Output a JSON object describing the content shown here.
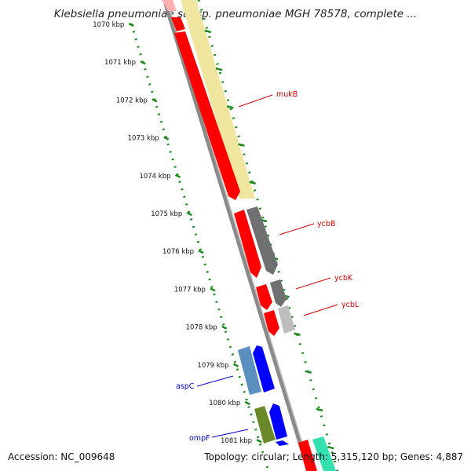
{
  "title": "Klebsiella pneumoniae subsp. pneumoniae MGH 78578, complete ...",
  "footer": {
    "accession": "Accession: NC_009648",
    "summary": "Topology: circular; Length: 5,315,120 bp; Genes: 4,887"
  },
  "ticks": [
    {
      "label": "1070 kbp"
    },
    {
      "label": "1071 kbp"
    },
    {
      "label": "1072 kbp"
    },
    {
      "label": "1073 kbp"
    },
    {
      "label": "1074 kbp"
    },
    {
      "label": "1075 kbp"
    },
    {
      "label": "1076 kbp"
    },
    {
      "label": "1077 kbp"
    },
    {
      "label": "1078 kbp"
    },
    {
      "label": "1079 kbp"
    },
    {
      "label": "1080 kbp"
    },
    {
      "label": "1081 kbp"
    }
  ],
  "gene_labels": [
    {
      "text": "mukB",
      "color": "#cc0000"
    },
    {
      "text": "ycbB",
      "color": "#cc0000"
    },
    {
      "text": "ycbK",
      "color": "#cc0000"
    },
    {
      "text": "ycbL",
      "color": "#cc0000"
    },
    {
      "text": "aspC",
      "color": "#0000cc"
    },
    {
      "text": "ompF",
      "color": "#0000cc"
    }
  ],
  "colors": {
    "backbone": "#8a8a8a",
    "tick": "#1a8a1a",
    "forward": "#ff0000",
    "reverse_blue": "#0000ff",
    "highlight": "#f0e6a0",
    "gray": "#707070",
    "light_gray": "#bdbdbd",
    "steelblue": "#5a8fc0",
    "olive": "#6a8a2a",
    "aqua": "#33e0b0"
  }
}
